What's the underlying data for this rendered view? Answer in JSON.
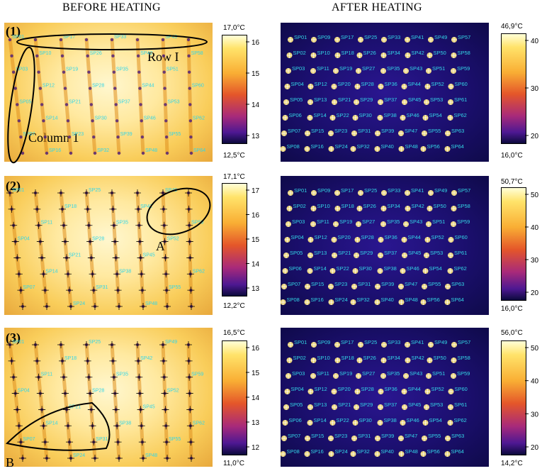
{
  "headers": {
    "before": "BEFORE HEATING",
    "after": "AFTER HEATING"
  },
  "panels": [
    {
      "number": "(1)",
      "before_scale": {
        "max": "17,0°C",
        "min": "12,5°C",
        "ticks": [
          "16",
          "15",
          "14",
          "13"
        ]
      },
      "after_scale": {
        "max": "46,9°C",
        "min": "16,0°C",
        "ticks": [
          "40",
          "30",
          "20"
        ]
      },
      "annotations": {
        "row": "Row I",
        "column": "Column 1"
      }
    },
    {
      "number": "(2)",
      "before_scale": {
        "max": "17,1°C",
        "min": "12,2°C",
        "ticks": [
          "17",
          "16",
          "15",
          "14",
          "13"
        ]
      },
      "after_scale": {
        "max": "50,7°C",
        "min": "16,0°C",
        "ticks": [
          "50",
          "40",
          "30",
          "20"
        ]
      },
      "annotations": {
        "region": "A"
      }
    },
    {
      "number": "(3)",
      "before_scale": {
        "max": "16,5°C",
        "min": "11,0°C",
        "ticks": [
          "16",
          "15",
          "14",
          "13",
          "12"
        ]
      },
      "after_scale": {
        "max": "56,0°C",
        "min": "14,2°C",
        "ticks": [
          "50",
          "40",
          "30",
          "20"
        ]
      },
      "annotations": {
        "region": "B"
      }
    }
  ],
  "spot_labels": [
    [
      "SP01",
      "SP09",
      "SP17",
      "SP25",
      "SP33",
      "SP41",
      "SP49",
      "SP57"
    ],
    [
      "SP02",
      "SP10",
      "SP18",
      "SP26",
      "SP34",
      "SP42",
      "SP50",
      "SP58"
    ],
    [
      "SP03",
      "SP11",
      "SP19",
      "SP27",
      "SP35",
      "SP43",
      "SP51",
      "SP59"
    ],
    [
      "SP04",
      "SP12",
      "SP20",
      "SP28",
      "SP36",
      "SP44",
      "SP52",
      "SP60"
    ],
    [
      "SP05",
      "SP13",
      "SP21",
      "SP29",
      "SP37",
      "SP45",
      "SP53",
      "SP61"
    ],
    [
      "SP06",
      "SP14",
      "SP22",
      "SP30",
      "SP38",
      "SP46",
      "SP54",
      "SP62"
    ],
    [
      "SP07",
      "SP15",
      "SP23",
      "SP31",
      "SP39",
      "SP47",
      "SP55",
      "SP63"
    ],
    [
      "SP08",
      "SP16",
      "SP24",
      "SP32",
      "SP40",
      "SP48",
      "SP56",
      "SP64"
    ]
  ],
  "colors": {
    "label": "#33d6e6",
    "cross": "#000000",
    "hot": "#ffe87a"
  }
}
